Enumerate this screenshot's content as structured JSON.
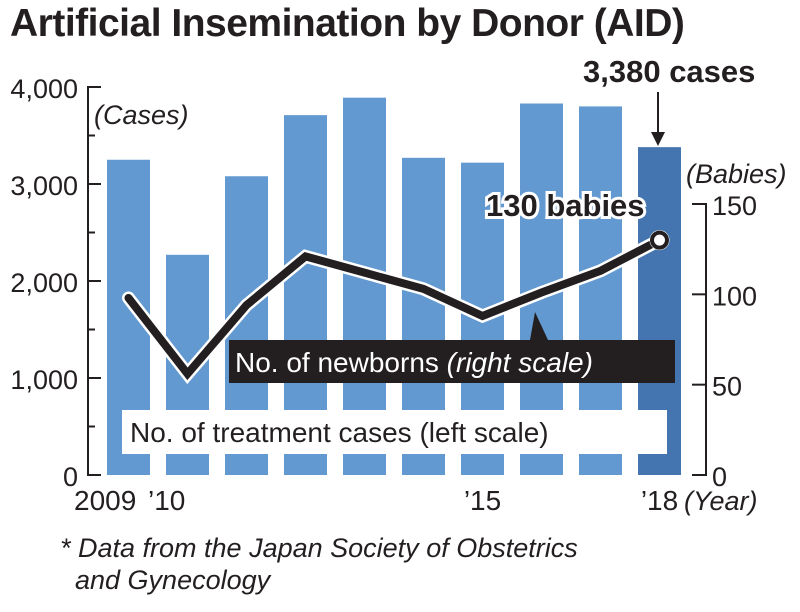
{
  "title": "Artificial Insemination by Donor (AID)",
  "note": {
    "line1": "* Data from the Japan Society of Obstetrics",
    "line2": "and Gynecology"
  },
  "colors": {
    "bar": "#6399d1",
    "bar_highlight": "#4575b0",
    "line": "#231f20",
    "text": "#231f20"
  },
  "chart_data": {
    "type": "bar+line",
    "title": "Artificial Insemination by Donor (AID)",
    "categories": [
      "2009",
      "2010",
      "2011",
      "2012",
      "2013",
      "2014",
      "2015",
      "2016",
      "2017",
      "2018"
    ],
    "x_tick_labels": [
      {
        "category": "2009",
        "label": "2009"
      },
      {
        "category": "2010",
        "label": "’10"
      },
      {
        "category": "2015",
        "label": "’15"
      },
      {
        "category": "2018",
        "label": "’18"
      }
    ],
    "xlabel": "(Year)",
    "series": [
      {
        "name": "No. of treatment cases (left scale)",
        "type": "bar",
        "axis": "left",
        "values": [
          3250,
          2270,
          3080,
          3710,
          3890,
          3270,
          3220,
          3830,
          3800,
          3380
        ],
        "highlight_index": 9
      },
      {
        "name": "No. of newborns",
        "name_suffix": "(right scale)",
        "type": "line",
        "axis": "right",
        "values": [
          98,
          56,
          94,
          121,
          112,
          103,
          88,
          101,
          113,
          130
        ]
      }
    ],
    "left_axis": {
      "label": "(Cases)",
      "ylim": [
        0,
        4000
      ],
      "ticks": [
        0,
        1000,
        2000,
        3000,
        4000
      ],
      "tick_labels": [
        "0",
        "1,000",
        "2,000",
        "3,000",
        "4,000"
      ],
      "minor_step": 500
    },
    "right_axis": {
      "label": "(Babies)",
      "ylim": [
        0,
        150
      ],
      "ticks": [
        0,
        50,
        100,
        150
      ],
      "tick_labels": [
        "0",
        "50",
        "100",
        "150"
      ]
    },
    "annotations": [
      {
        "text": "3,380 cases",
        "target": "2018",
        "series": "bar"
      },
      {
        "text": "130 babies",
        "target": "2018",
        "series": "line"
      }
    ],
    "grid": false,
    "legend": "inline-labels"
  }
}
